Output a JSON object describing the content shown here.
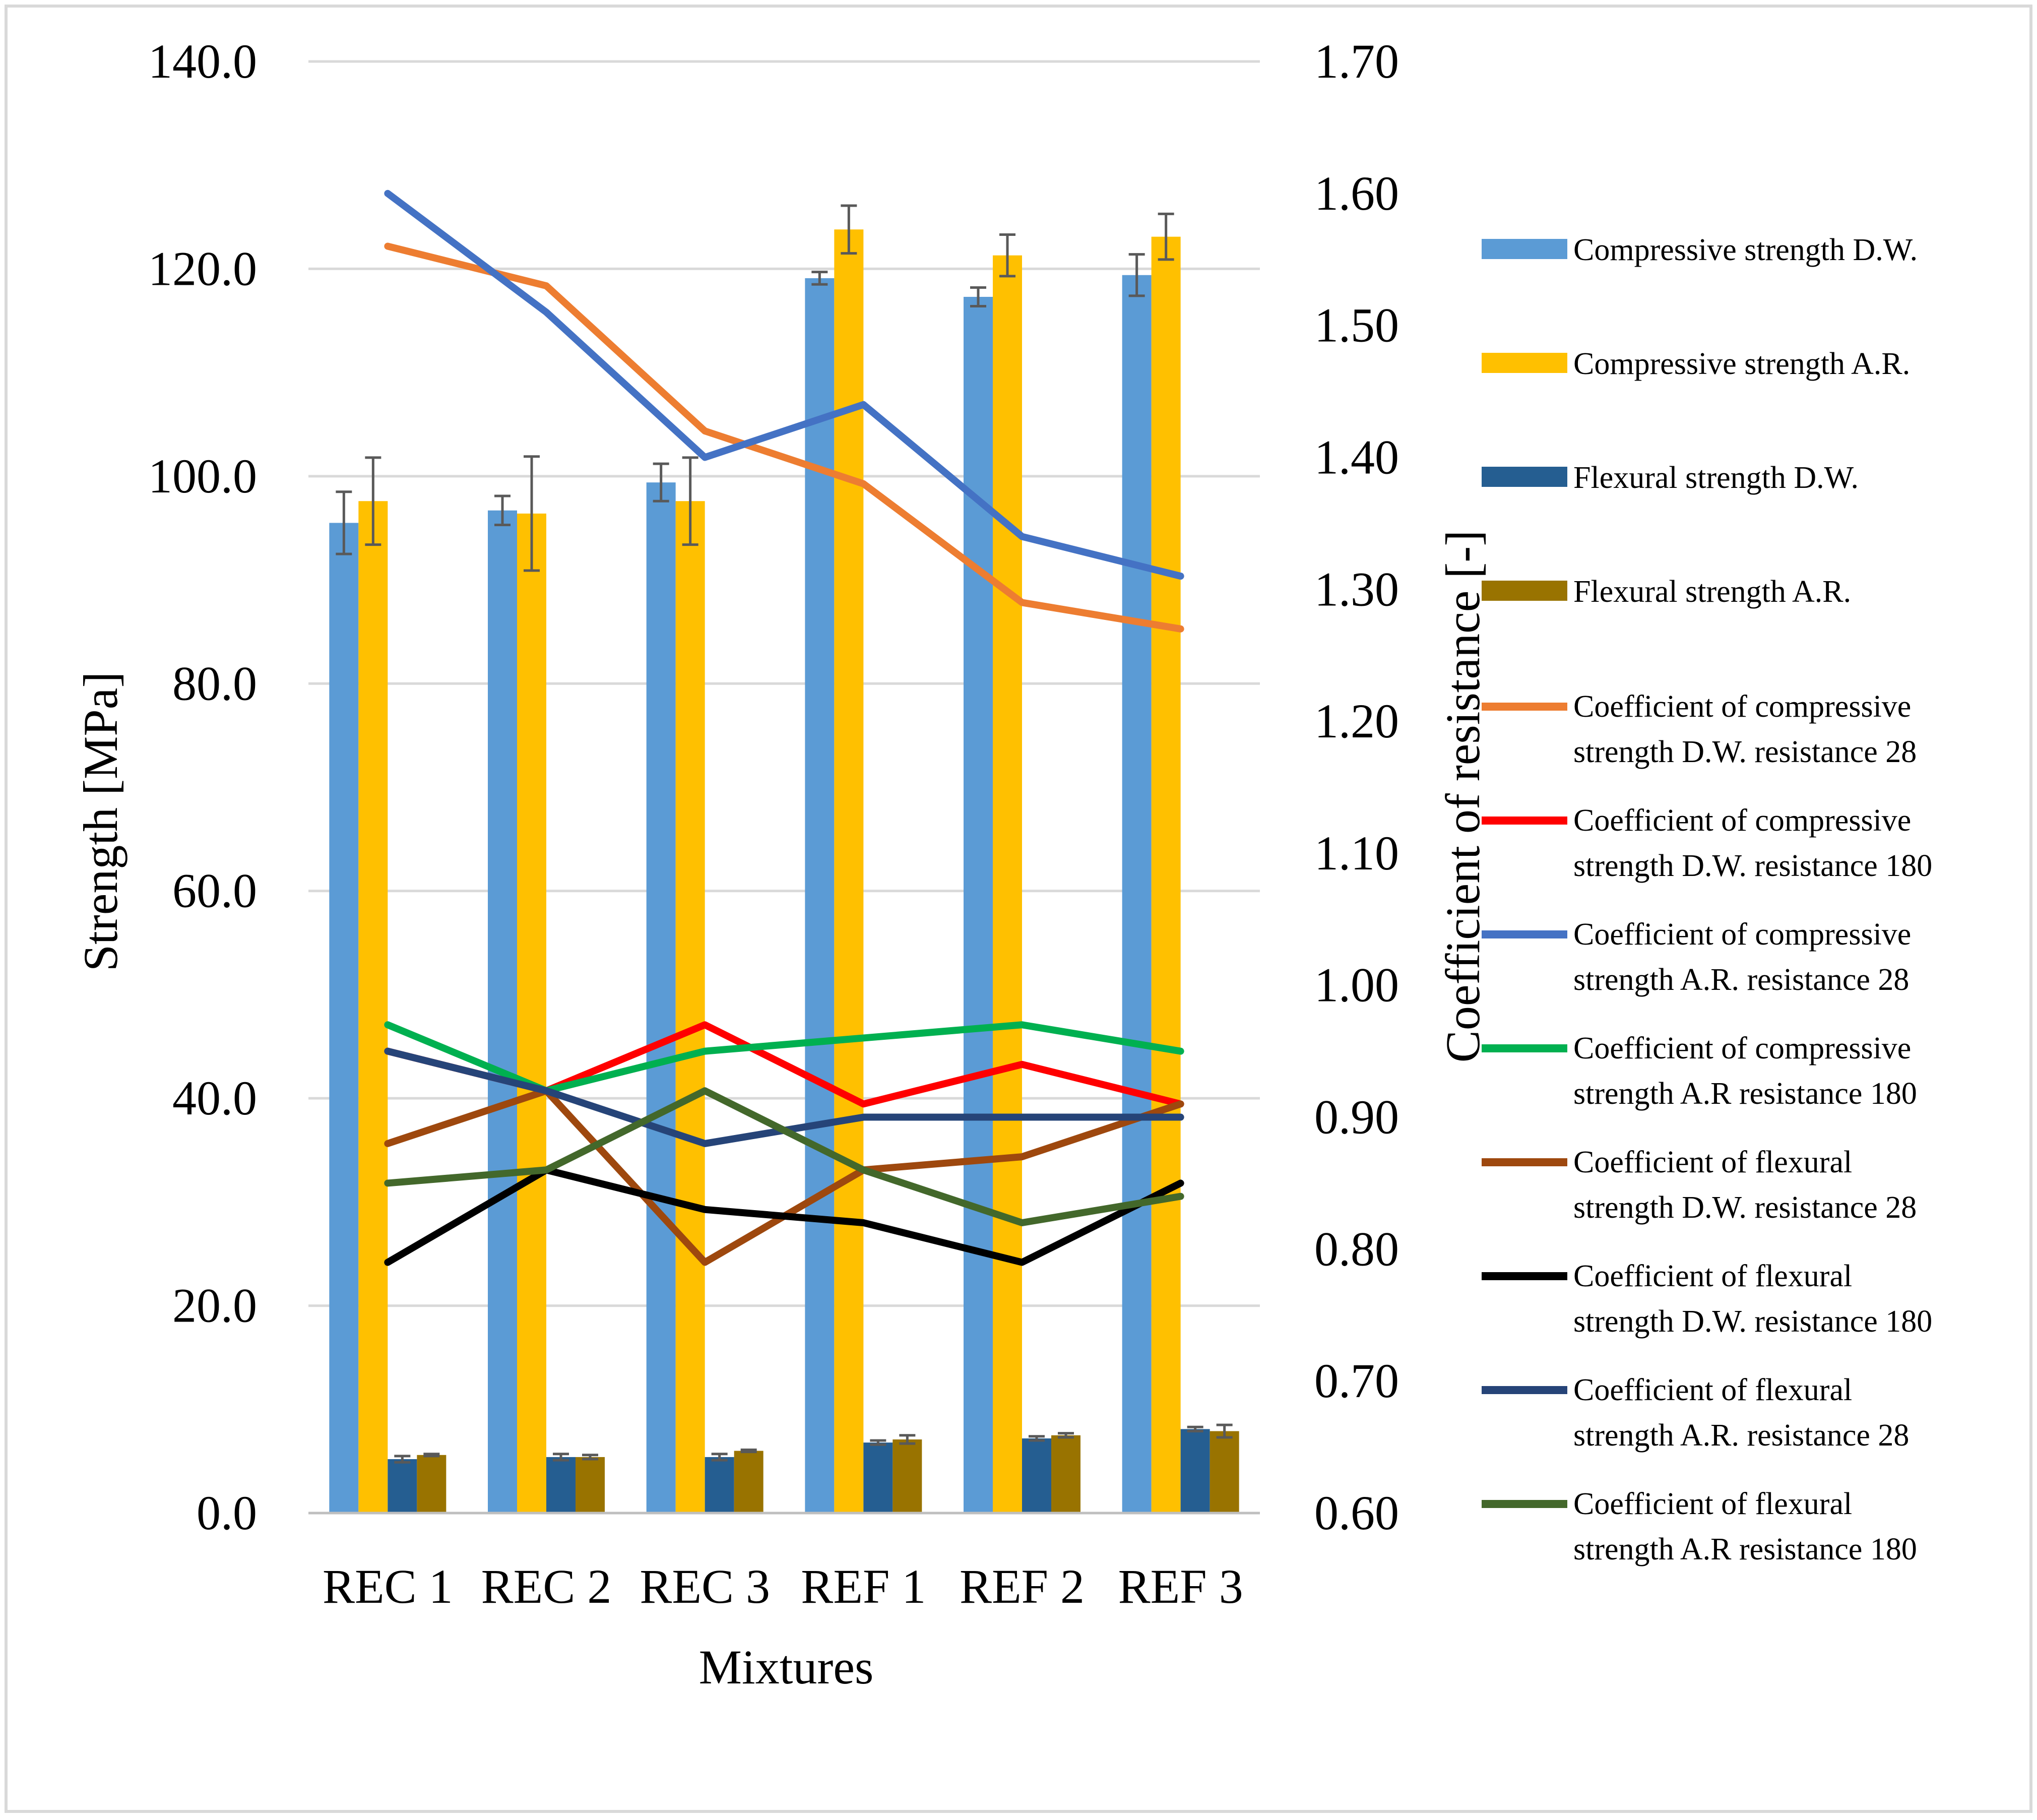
{
  "chart_data": {
    "type": "bar",
    "categories": [
      "REC 1",
      "REC 2",
      "REC 3",
      "REF 1",
      "REF 2",
      "REF 3"
    ],
    "xlabel": "Mixtures",
    "ylabel": "Strength [MPa]",
    "y2label": "Coefficient of resistance  [-]",
    "ylim": [
      0,
      140
    ],
    "y2lim": [
      0.6,
      1.7
    ],
    "yticks": [
      "0.0",
      "20.0",
      "40.0",
      "60.0",
      "80.0",
      "100.0",
      "120.0",
      "140.0"
    ],
    "y2ticks": [
      "0.60",
      "0.70",
      "0.80",
      "0.90",
      "1.00",
      "1.10",
      "1.20",
      "1.30",
      "1.40",
      "1.50",
      "1.60",
      "1.70"
    ],
    "grid": true,
    "legend_position": "right",
    "bar_series": [
      {
        "name": "Compressive strength D.W.",
        "color": "#5B9BD5",
        "values": [
          95.5,
          96.7,
          99.4,
          119.1,
          117.3,
          119.4
        ],
        "errors": [
          3.0,
          1.4,
          1.8,
          0.6,
          0.9,
          2.0
        ]
      },
      {
        "name": "Compressive strength A.R.",
        "color": "#FFC000",
        "values": [
          97.6,
          96.4,
          97.6,
          123.8,
          121.3,
          123.1
        ],
        "errors": [
          4.2,
          5.5,
          4.2,
          2.3,
          2.0,
          2.2
        ]
      },
      {
        "name": "Flexural strength D.W.",
        "color": "#255E91",
        "values": [
          5.2,
          5.4,
          5.4,
          6.8,
          7.2,
          8.1
        ],
        "errors": [
          0.3,
          0.3,
          0.3,
          0.2,
          0.2,
          0.2
        ]
      },
      {
        "name": "Flexural strength A.R.",
        "color": "#997300",
        "values": [
          5.6,
          5.4,
          6.0,
          7.1,
          7.5,
          7.9
        ],
        "errors": [
          0.1,
          0.2,
          0.1,
          0.4,
          0.2,
          0.6
        ]
      }
    ],
    "line_series": [
      {
        "name": "Coefficient of compressive strength D.W. resistance 28",
        "legend_lines": [
          "Coefficient of compressive",
          "strength D.W. resistance 28"
        ],
        "color": "#ED7D31",
        "values": [
          1.56,
          1.53,
          1.42,
          1.38,
          1.29,
          1.27
        ]
      },
      {
        "name": "Coefficient of compressive strength D.W. resistance 180",
        "legend_lines": [
          "Coefficient of compressive",
          "strength D.W. resistance 180"
        ],
        "color": "#FF0000",
        "values": [
          0.95,
          0.92,
          0.97,
          0.91,
          0.94,
          0.91
        ]
      },
      {
        "name": "Coefficient of compressive strength A.R. resistance 28",
        "legend_lines": [
          "Coefficient of compressive",
          "strength A.R. resistance 28"
        ],
        "color": "#4472C4",
        "values": [
          1.6,
          1.51,
          1.4,
          1.44,
          1.34,
          1.31
        ]
      },
      {
        "name": "Coefficient of compressive strength A.R resistance 180",
        "legend_lines": [
          "Coefficient of compressive",
          "strength A.R resistance 180"
        ],
        "color": "#00B050",
        "values": [
          0.97,
          0.92,
          0.95,
          0.96,
          0.97,
          0.95
        ]
      },
      {
        "name": "Coefficient of flexural strength D.W. resistance 28",
        "legend_lines": [
          "Coefficient of flexural",
          "strength D.W. resistance 28"
        ],
        "color": "#9E480E",
        "values": [
          0.88,
          0.92,
          0.79,
          0.86,
          0.87,
          0.91
        ]
      },
      {
        "name": "Coefficient of  flexural strength D.W. resistance 180",
        "legend_lines": [
          "Coefficient of  flexural",
          "strength D.W. resistance 180"
        ],
        "color": "#000000",
        "values": [
          0.79,
          0.86,
          0.83,
          0.82,
          0.79,
          0.85
        ]
      },
      {
        "name": "Coefficient of  flexural strength A.R. resistance 28",
        "legend_lines": [
          "Coefficient of  flexural",
          "strength A.R. resistance 28"
        ],
        "color": "#264478",
        "values": [
          0.95,
          0.92,
          0.88,
          0.9,
          0.9,
          0.9
        ]
      },
      {
        "name": "Coefficient of  flexural strength A.R resistance 180",
        "legend_lines": [
          "Coefficient of  flexural",
          "strength A.R resistance 180"
        ],
        "color": "#43682B",
        "values": [
          0.85,
          0.86,
          0.92,
          0.86,
          0.82,
          0.84
        ]
      }
    ]
  }
}
